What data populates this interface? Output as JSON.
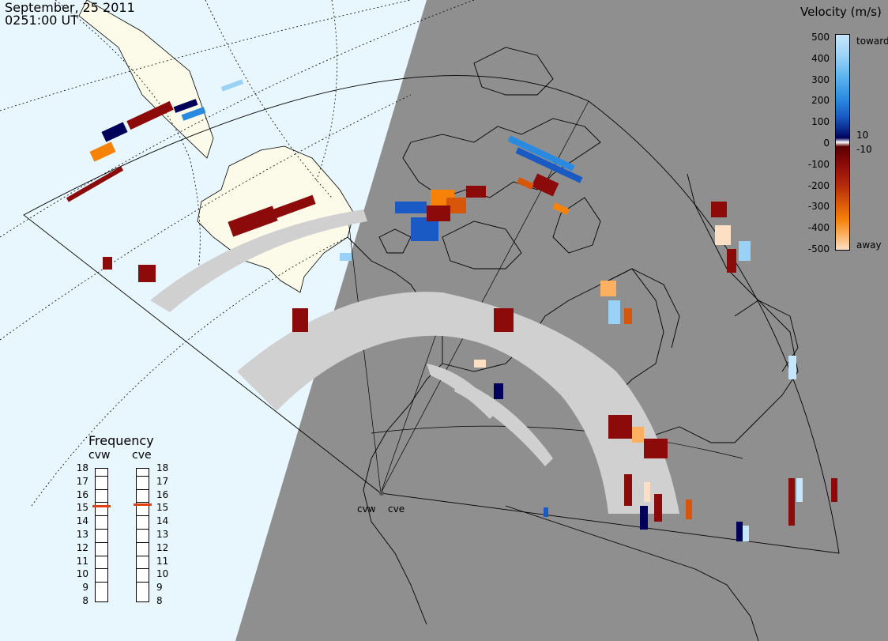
{
  "header": {
    "date": "September, 25 2011",
    "time": "0251:00 UT"
  },
  "radars": [
    "cvw",
    "cve"
  ],
  "velocity_scale": {
    "title": "Velocity (m/s)",
    "ticks": [
      "500",
      "400",
      "300",
      "200",
      "100",
      "10",
      "0",
      "-10",
      "-100",
      "-200",
      "-300",
      "-400",
      "-500"
    ],
    "toward_label": "toward",
    "away_label": "away",
    "colors": [
      "#c6e6fb",
      "#9ad2f7",
      "#5ab2ee",
      "#2a8ae0",
      "#1a5ac4",
      "#0a2a8c",
      "#00005a",
      "#ffffff",
      "#5a0000",
      "#8c0a0a",
      "#b42a0a",
      "#d8560a",
      "#f6820a",
      "#fcb060",
      "#fde0c4"
    ]
  },
  "frequency_panel": {
    "title": "Frequency",
    "columns": [
      "cvw",
      "cve"
    ],
    "mhz": [
      "18",
      "17",
      "16",
      "15",
      "14",
      "13",
      "12",
      "11",
      "10",
      "9",
      "8"
    ],
    "marker_mhz": {
      "cvw": 14.8,
      "cve": 14.9
    },
    "marker_color": "#e04010"
  },
  "map_colors": {
    "sunlit_ocean": "#e8f6fd",
    "sunlit_land": "#fcfbe9",
    "night": "#8f8f8f",
    "ground_scatter": "#d0d0d0"
  }
}
